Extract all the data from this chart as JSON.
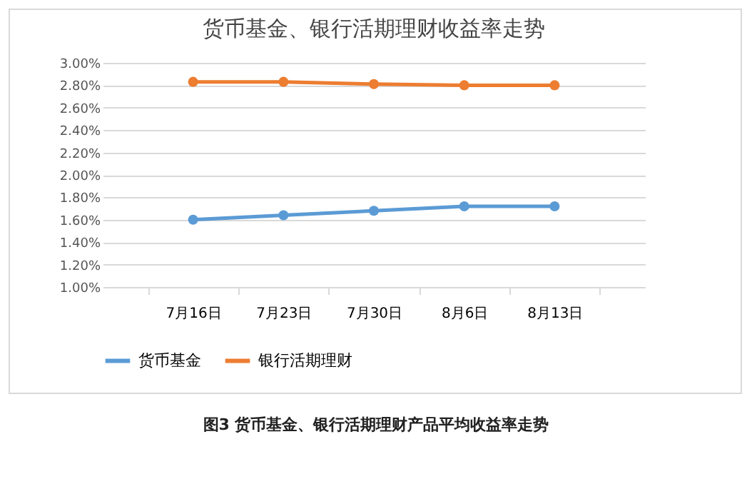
{
  "chart_data": {
    "type": "line",
    "title": "货币基金、银行活期理财收益率走势",
    "categories": [
      "7月16日",
      "7月23日",
      "7月30日",
      "8月6日",
      "8月13日"
    ],
    "series": [
      {
        "name": "货币基金",
        "color": "#5b9bd5",
        "values": [
          1.6,
          1.64,
          1.68,
          1.72,
          1.72
        ]
      },
      {
        "name": "银行活期理财",
        "color": "#ed7d31",
        "values": [
          2.83,
          2.83,
          2.81,
          2.8,
          2.8
        ]
      }
    ],
    "ylim": [
      1.0,
      3.0
    ],
    "yticks": [
      {
        "value": 1.0,
        "label": "1.00%"
      },
      {
        "value": 1.2,
        "label": "1.20%"
      },
      {
        "value": 1.4,
        "label": "1.40%"
      },
      {
        "value": 1.6,
        "label": "1.60%"
      },
      {
        "value": 1.8,
        "label": "1.80%"
      },
      {
        "value": 2.0,
        "label": "2.00%"
      },
      {
        "value": 2.2,
        "label": "2.20%"
      },
      {
        "value": 2.4,
        "label": "2.40%"
      },
      {
        "value": 2.6,
        "label": "2.60%"
      },
      {
        "value": 2.8,
        "label": "2.80%"
      },
      {
        "value": 3.0,
        "label": "3.00%"
      }
    ],
    "grid": "y",
    "legend": "bottom",
    "marker": "circle",
    "line_style": "solid",
    "annotations": [
      "图3 货币基金、银行活期理财产品平均收益率走势"
    ]
  }
}
